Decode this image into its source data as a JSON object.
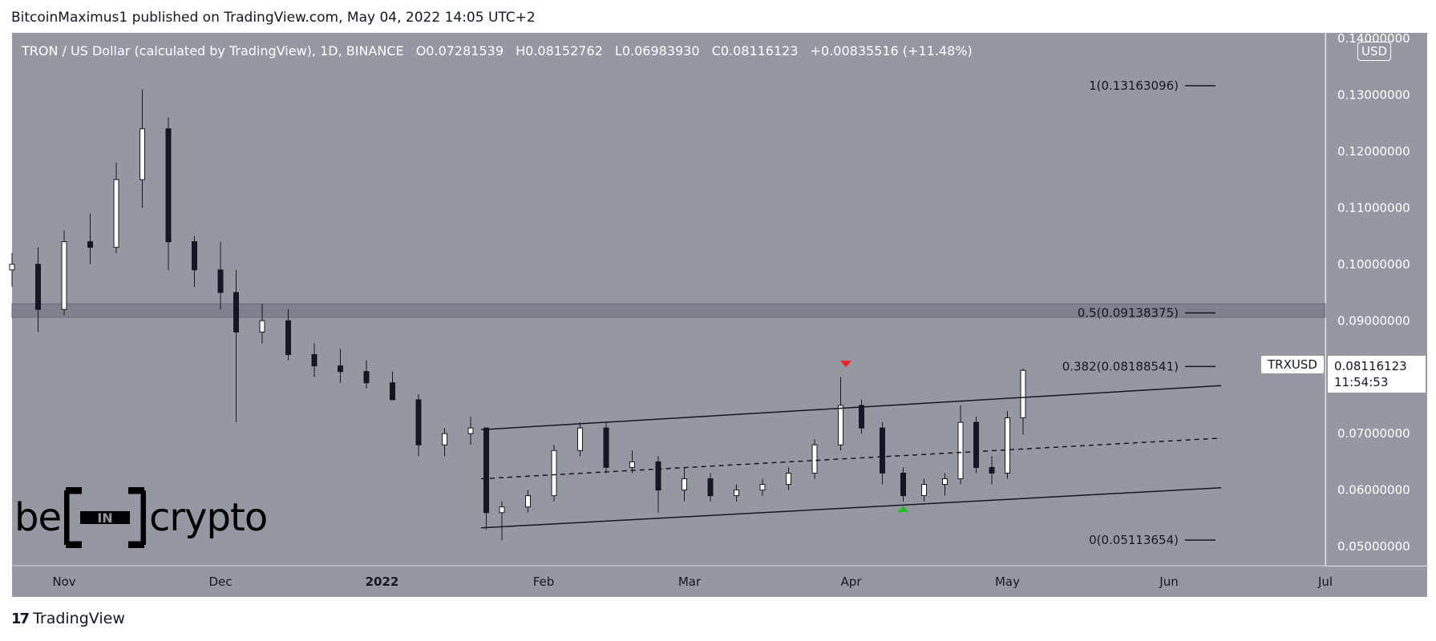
{
  "header": {
    "publisher": "BitcoinMaximus1 published on TradingView.com, May 04, 2022 14:05 UTC+2"
  },
  "legend": {
    "title": "TRON / US Dollar (calculated by TradingView), 1D, BINANCE",
    "o_label": "O",
    "o": "0.07281539",
    "h_label": "H",
    "h": "0.08152762",
    "l_label": "L",
    "l": "0.06983930",
    "c_label": "C",
    "c": "0.08116123",
    "change": "+0.00835516 (+11.48%)"
  },
  "currency": "USD",
  "symbol_label": "TRXUSD",
  "last_price": "0.08116123",
  "countdown": "11:54:53",
  "branding": {
    "left": "be",
    "box": "IN",
    "right": "crypto"
  },
  "footer": {
    "logo_mark": "17",
    "brand": "TradingView"
  },
  "colors": {
    "background": "#9598a1",
    "panel": "#9598a1",
    "candle_up": "#ffffff",
    "candle_down": "#131722",
    "marker_top": "#ff1d1d",
    "marker_bottom": "#20c020"
  },
  "chart_data": {
    "type": "candlestick",
    "title": "TRON / US Dollar (calculated by TradingView), 1D, BINANCE",
    "y_ticks": [
      "0.14000000",
      "0.13000000",
      "0.12000000",
      "0.11000000",
      "0.10000000",
      "0.09000000",
      "0.08000000",
      "0.07000000",
      "0.06000000",
      "0.05000000"
    ],
    "y_tick_values": [
      0.14,
      0.13,
      0.12,
      0.11,
      0.1,
      0.09,
      0.08,
      0.07,
      0.06,
      0.05
    ],
    "ylim": [
      0.0466,
      0.141
    ],
    "x_ticks": [
      {
        "label": "Nov",
        "date": "2021-11-01"
      },
      {
        "label": "Dec",
        "date": "2021-12-01"
      },
      {
        "label": "2022",
        "date": "2022-01-01"
      },
      {
        "label": "Feb",
        "date": "2022-02-01"
      },
      {
        "label": "Mar",
        "date": "2022-03-01"
      },
      {
        "label": "Apr",
        "date": "2022-04-01"
      },
      {
        "label": "May",
        "date": "2022-05-01"
      },
      {
        "label": "Jun",
        "date": "2022-06-01"
      },
      {
        "label": "Jul",
        "date": "2022-07-01"
      }
    ],
    "xlim": [
      "2021-10-22",
      "2022-07-01"
    ],
    "fib_levels": [
      {
        "label": "1(0.13163096)",
        "value": 0.13163096
      },
      {
        "label": "0.5(0.09138375)",
        "value": 0.09138375
      },
      {
        "label": "0.382(0.08188541)",
        "value": 0.08188541
      },
      {
        "label": "0(0.05113654)",
        "value": 0.05113654
      }
    ],
    "resistance_zone": [
      0.0906,
      0.093
    ],
    "channel": {
      "upper": [
        {
          "date": "2022-01-20",
          "value": 0.0707
        },
        {
          "date": "2022-06-11",
          "value": 0.0785
        }
      ],
      "middle": [
        {
          "date": "2022-01-20",
          "value": 0.062
        },
        {
          "date": "2022-06-11",
          "value": 0.0692
        }
      ],
      "lower": [
        {
          "date": "2022-01-20",
          "value": 0.0533
        },
        {
          "date": "2022-06-11",
          "value": 0.0604
        }
      ]
    },
    "markers": [
      {
        "type": "down-arrow",
        "date": "2022-03-31",
        "value": 0.0822
      },
      {
        "type": "up-arrow",
        "date": "2022-04-11",
        "value": 0.0568
      }
    ],
    "candles": [
      {
        "date": "2021-10-22",
        "o": 0.099,
        "h": 0.102,
        "l": 0.096,
        "c": 0.1
      },
      {
        "date": "2021-10-27",
        "o": 0.1,
        "h": 0.103,
        "l": 0.088,
        "c": 0.092
      },
      {
        "date": "2021-11-01",
        "o": 0.092,
        "h": 0.106,
        "l": 0.091,
        "c": 0.104
      },
      {
        "date": "2021-11-06",
        "o": 0.104,
        "h": 0.109,
        "l": 0.1,
        "c": 0.103
      },
      {
        "date": "2021-11-11",
        "o": 0.103,
        "h": 0.118,
        "l": 0.102,
        "c": 0.115
      },
      {
        "date": "2021-11-16",
        "o": 0.115,
        "h": 0.131,
        "l": 0.11,
        "c": 0.124
      },
      {
        "date": "2021-11-21",
        "o": 0.124,
        "h": 0.126,
        "l": 0.099,
        "c": 0.104
      },
      {
        "date": "2021-11-26",
        "o": 0.104,
        "h": 0.105,
        "l": 0.096,
        "c": 0.099
      },
      {
        "date": "2021-12-01",
        "o": 0.099,
        "h": 0.104,
        "l": 0.092,
        "c": 0.095
      },
      {
        "date": "2021-12-04",
        "o": 0.095,
        "h": 0.099,
        "l": 0.072,
        "c": 0.088
      },
      {
        "date": "2021-12-09",
        "o": 0.088,
        "h": 0.093,
        "l": 0.086,
        "c": 0.09
      },
      {
        "date": "2021-12-14",
        "o": 0.09,
        "h": 0.092,
        "l": 0.083,
        "c": 0.084
      },
      {
        "date": "2021-12-19",
        "o": 0.084,
        "h": 0.086,
        "l": 0.08,
        "c": 0.082
      },
      {
        "date": "2021-12-24",
        "o": 0.082,
        "h": 0.085,
        "l": 0.079,
        "c": 0.081
      },
      {
        "date": "2021-12-29",
        "o": 0.081,
        "h": 0.083,
        "l": 0.078,
        "c": 0.079
      },
      {
        "date": "2022-01-03",
        "o": 0.079,
        "h": 0.081,
        "l": 0.076,
        "c": 0.076
      },
      {
        "date": "2022-01-08",
        "o": 0.076,
        "h": 0.077,
        "l": 0.066,
        "c": 0.068
      },
      {
        "date": "2022-01-13",
        "o": 0.068,
        "h": 0.071,
        "l": 0.066,
        "c": 0.07
      },
      {
        "date": "2022-01-18",
        "o": 0.07,
        "h": 0.073,
        "l": 0.068,
        "c": 0.071
      },
      {
        "date": "2022-01-21",
        "o": 0.071,
        "h": 0.071,
        "l": 0.053,
        "c": 0.056
      },
      {
        "date": "2022-01-24",
        "o": 0.056,
        "h": 0.058,
        "l": 0.0511,
        "c": 0.057
      },
      {
        "date": "2022-01-29",
        "o": 0.057,
        "h": 0.06,
        "l": 0.056,
        "c": 0.059
      },
      {
        "date": "2022-02-03",
        "o": 0.059,
        "h": 0.068,
        "l": 0.058,
        "c": 0.067
      },
      {
        "date": "2022-02-08",
        "o": 0.067,
        "h": 0.072,
        "l": 0.066,
        "c": 0.071
      },
      {
        "date": "2022-02-13",
        "o": 0.071,
        "h": 0.072,
        "l": 0.063,
        "c": 0.064
      },
      {
        "date": "2022-02-18",
        "o": 0.064,
        "h": 0.067,
        "l": 0.063,
        "c": 0.065
      },
      {
        "date": "2022-02-23",
        "o": 0.065,
        "h": 0.066,
        "l": 0.056,
        "c": 0.06
      },
      {
        "date": "2022-02-28",
        "o": 0.06,
        "h": 0.064,
        "l": 0.058,
        "c": 0.062
      },
      {
        "date": "2022-03-05",
        "o": 0.062,
        "h": 0.063,
        "l": 0.058,
        "c": 0.059
      },
      {
        "date": "2022-03-10",
        "o": 0.059,
        "h": 0.061,
        "l": 0.058,
        "c": 0.06
      },
      {
        "date": "2022-03-15",
        "o": 0.06,
        "h": 0.062,
        "l": 0.059,
        "c": 0.061
      },
      {
        "date": "2022-03-20",
        "o": 0.061,
        "h": 0.064,
        "l": 0.06,
        "c": 0.063
      },
      {
        "date": "2022-03-25",
        "o": 0.063,
        "h": 0.069,
        "l": 0.062,
        "c": 0.068
      },
      {
        "date": "2022-03-30",
        "o": 0.068,
        "h": 0.08,
        "l": 0.067,
        "c": 0.075
      },
      {
        "date": "2022-04-03",
        "o": 0.075,
        "h": 0.076,
        "l": 0.07,
        "c": 0.071
      },
      {
        "date": "2022-04-07",
        "o": 0.071,
        "h": 0.072,
        "l": 0.061,
        "c": 0.063
      },
      {
        "date": "2022-04-11",
        "o": 0.063,
        "h": 0.064,
        "l": 0.058,
        "c": 0.059
      },
      {
        "date": "2022-04-15",
        "o": 0.059,
        "h": 0.062,
        "l": 0.058,
        "c": 0.061
      },
      {
        "date": "2022-04-19",
        "o": 0.061,
        "h": 0.063,
        "l": 0.059,
        "c": 0.062
      },
      {
        "date": "2022-04-22",
        "o": 0.062,
        "h": 0.075,
        "l": 0.061,
        "c": 0.072
      },
      {
        "date": "2022-04-25",
        "o": 0.072,
        "h": 0.073,
        "l": 0.063,
        "c": 0.064
      },
      {
        "date": "2022-04-28",
        "o": 0.064,
        "h": 0.066,
        "l": 0.061,
        "c": 0.063
      },
      {
        "date": "2022-05-01",
        "o": 0.063,
        "h": 0.074,
        "l": 0.062,
        "c": 0.0728
      },
      {
        "date": "2022-05-04",
        "o": 0.0728,
        "h": 0.0815,
        "l": 0.0698,
        "c": 0.0812
      }
    ]
  }
}
